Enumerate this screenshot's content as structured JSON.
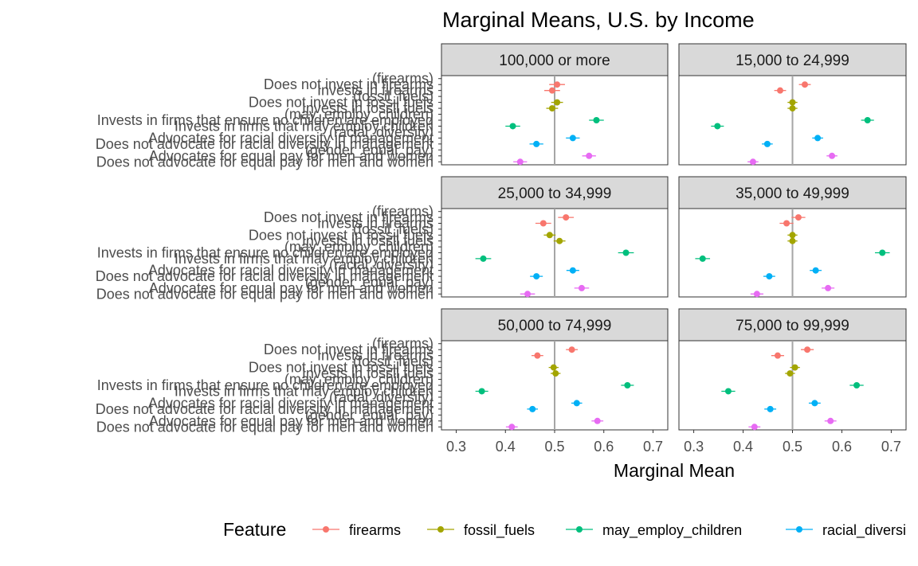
{
  "chart_data": {
    "type": "scatter",
    "title": "Marginal Means, U.S. by Income",
    "xlabel": "Marginal Mean",
    "ylabel": "",
    "xlim": [
      0.27,
      0.73
    ],
    "xticks": [
      "0.3",
      "0.4",
      "0.5",
      "0.6",
      "0.7"
    ],
    "reference_line": 0.5,
    "grid": false,
    "y_categories": [
      "(firearms)",
      "Does not invest in firearms",
      "Invests in firearms",
      "(fossil_fuels)",
      "Does not invest in fossil fuels",
      "Invests in fossil fuels",
      "(may_employ_children)",
      "Invests in firms that ensure no children are employed",
      "Invests in firms that may employ children",
      "(racial_diversity)",
      "Advocates for racial diversity in management",
      "Does not advocate for racial diversity in management",
      "(gender_equal_pay)",
      "Advocates for equal pay for men and women",
      "Does not advocate for equal pay for men and women"
    ],
    "legend": {
      "title": "Feature",
      "position": "bottom",
      "entries": [
        {
          "name": "firearms",
          "color": "#F8766D"
        },
        {
          "name": "fossil_fuels",
          "color": "#A3A500"
        },
        {
          "name": "may_employ_children",
          "color": "#00BF7D"
        },
        {
          "name": "racial_diversi",
          "color": "#00B0F6"
        }
      ]
    },
    "level_feature": [
      "firearms",
      "firearms",
      "fossil_fuels",
      "fossil_fuels",
      "may_employ_children",
      "may_employ_children",
      "racial_diversity",
      "racial_diversity",
      "gender_equal_pay",
      "gender_equal_pay"
    ],
    "feature_colors": {
      "firearms": "#F8766D",
      "fossil_fuels": "#A3A500",
      "may_employ_children": "#00BF7D",
      "racial_diversity": "#00B0F6",
      "gender_equal_pay": "#E76BF3"
    },
    "panels": [
      {
        "label": "100,000 or more",
        "estimates": [
          0.505,
          0.495,
          0.505,
          0.495,
          0.585,
          0.415,
          0.537,
          0.463,
          0.57,
          0.43
        ],
        "ci_halfwidth": [
          0.016,
          0.016,
          0.012,
          0.012,
          0.015,
          0.015,
          0.014,
          0.014,
          0.014,
          0.014
        ]
      },
      {
        "label": "15,000 to 24,999",
        "estimates": [
          0.525,
          0.475,
          0.5,
          0.5,
          0.652,
          0.348,
          0.551,
          0.449,
          0.58,
          0.42
        ],
        "ci_halfwidth": [
          0.012,
          0.012,
          0.01,
          0.01,
          0.013,
          0.013,
          0.011,
          0.011,
          0.011,
          0.011
        ]
      },
      {
        "label": "25,000 to 34,999",
        "estimates": [
          0.523,
          0.477,
          0.49,
          0.51,
          0.645,
          0.355,
          0.537,
          0.463,
          0.555,
          0.445
        ],
        "ci_halfwidth": [
          0.016,
          0.016,
          0.012,
          0.012,
          0.016,
          0.016,
          0.013,
          0.013,
          0.015,
          0.015
        ]
      },
      {
        "label": "35,000 to 49,999",
        "estimates": [
          0.512,
          0.488,
          0.5,
          0.5,
          0.682,
          0.318,
          0.547,
          0.453,
          0.572,
          0.428
        ],
        "ci_halfwidth": [
          0.014,
          0.014,
          0.01,
          0.01,
          0.015,
          0.015,
          0.012,
          0.012,
          0.013,
          0.013
        ]
      },
      {
        "label": "50,000 to 74,999",
        "estimates": [
          0.535,
          0.465,
          0.498,
          0.502,
          0.648,
          0.352,
          0.545,
          0.455,
          0.587,
          0.413
        ],
        "ci_halfwidth": [
          0.012,
          0.012,
          0.01,
          0.01,
          0.013,
          0.013,
          0.011,
          0.011,
          0.012,
          0.012
        ]
      },
      {
        "label": "75,000 to 99,999",
        "estimates": [
          0.53,
          0.47,
          0.505,
          0.495,
          0.63,
          0.37,
          0.545,
          0.455,
          0.577,
          0.423
        ],
        "ci_halfwidth": [
          0.013,
          0.013,
          0.01,
          0.01,
          0.014,
          0.014,
          0.012,
          0.012,
          0.012,
          0.012
        ]
      }
    ]
  }
}
